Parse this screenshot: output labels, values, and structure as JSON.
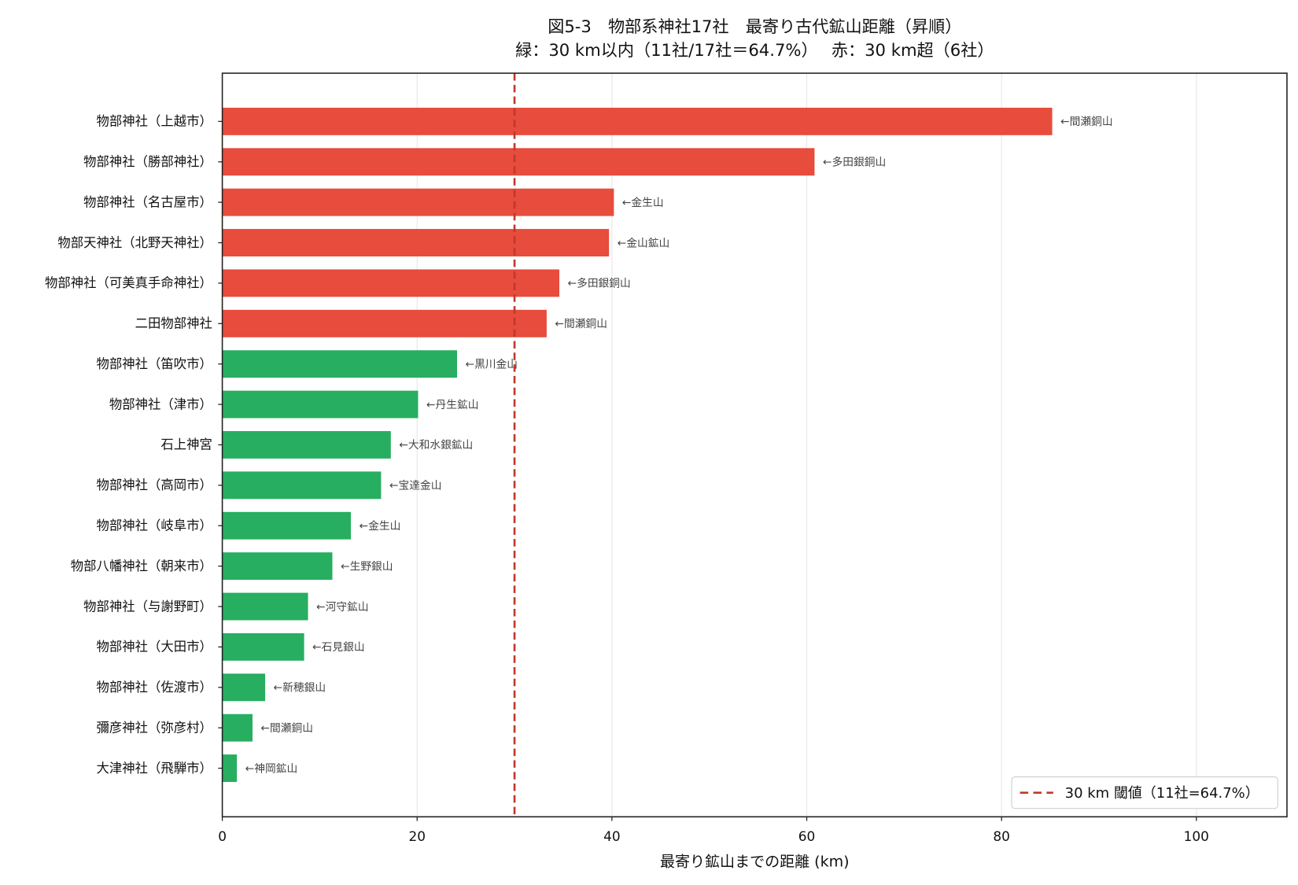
{
  "chart_data": {
    "type": "bar",
    "orientation": "horizontal",
    "title": "図5-3　物部系神社17社　最寄り古代鉱山距離（昇順）",
    "subtitle": "緑：30 km以内（11社/17社＝64.7%）　 赤：30 km超（6社）",
    "xlabel": "最寄り鉱山までの距離 (km)",
    "ylabel": "",
    "xlim": [
      0,
      109.3
    ],
    "xticks": [
      0,
      20,
      40,
      60,
      80,
      100
    ],
    "grid": "x",
    "categories": [
      "物部神社（上越市）",
      "物部神社（勝部神社）",
      "物部神社（名古屋市）",
      "物部天神社（北野天神社）",
      "物部神社（可美真手命神社）",
      "二田物部神社",
      "物部神社（笛吹市）",
      "物部神社（津市）",
      "石上神宮",
      "物部神社（高岡市）",
      "物部神社（岐阜市）",
      "物部八幡神社（朝来市）",
      "物部神社（与謝野町）",
      "物部神社（大田市）",
      "物部神社（佐渡市）",
      "彌彦神社（弥彦村）",
      "大津神社（飛騨市）"
    ],
    "values": [
      85.2,
      60.8,
      40.2,
      39.7,
      34.6,
      33.3,
      24.1,
      20.1,
      17.3,
      16.3,
      13.2,
      11.3,
      8.8,
      8.4,
      4.4,
      3.1,
      1.5
    ],
    "annotations": [
      "←間瀬銅山",
      "←多田銀銅山",
      "←金生山",
      "←金山鉱山",
      "←多田銀銅山",
      "←間瀬銅山",
      "←黒川金山",
      "←丹生鉱山",
      "←大和水銀鉱山",
      "←宝達金山",
      "←金生山",
      "←生野銀山",
      "←河守鉱山",
      "←石見銀山",
      "←新穂銀山",
      "←間瀬銅山",
      "←神岡鉱山"
    ],
    "threshold": {
      "value": 30,
      "label": "30 km 閾値（11社=64.7%）",
      "color": "#c0392b",
      "style": "dashed"
    },
    "colors": {
      "within": "#27ae60",
      "beyond": "#e74c3c"
    },
    "legend_position": "bottom-right"
  }
}
